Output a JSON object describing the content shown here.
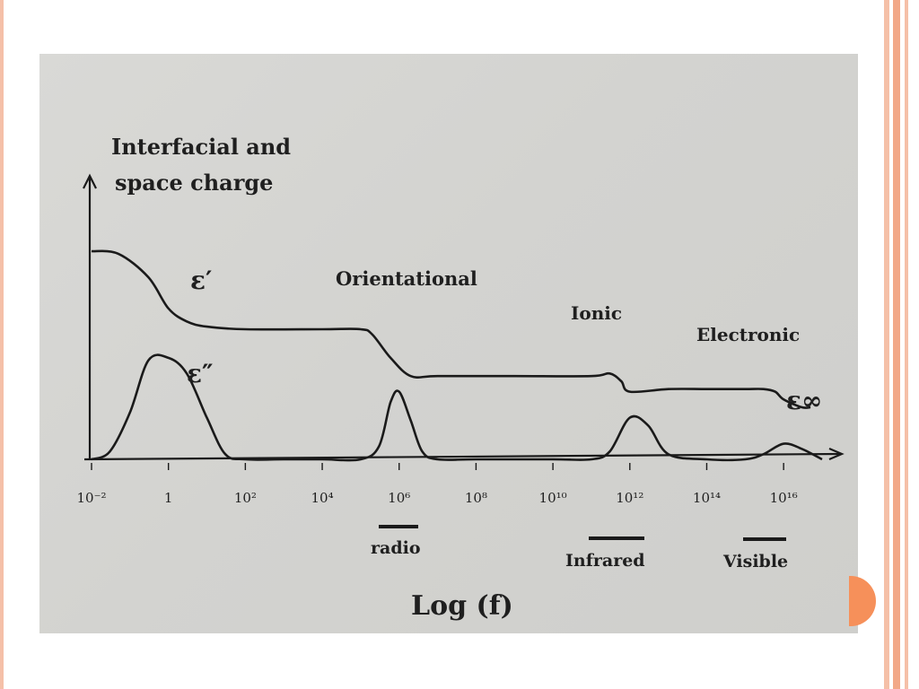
{
  "slide": {
    "accent_colors": [
      "#f5c0a8",
      "#f2a888",
      "#f6905a"
    ]
  },
  "chart_data": {
    "type": "line",
    "xlabel": "Log (f)",
    "ylabel": "",
    "x_scale": "log",
    "xlim": [
      0.01,
      1e+17
    ],
    "ylim": [
      0,
      10
    ],
    "x_ticks": [
      {
        "value": 0.01,
        "label": "10⁻²"
      },
      {
        "value": 1,
        "label": "1"
      },
      {
        "value": 100,
        "label": "10²"
      },
      {
        "value": 10000,
        "label": "10⁴"
      },
      {
        "value": 1000000.0,
        "label": "10⁶"
      },
      {
        "value": 100000000.0,
        "label": "10⁸"
      },
      {
        "value": 10000000000.0,
        "label": "10¹⁰"
      },
      {
        "value": 1000000000000.0,
        "label": "10¹²"
      },
      {
        "value": 100000000000000.0,
        "label": "10¹⁴"
      },
      {
        "value": 1e+16,
        "label": "10¹⁶"
      }
    ],
    "series": [
      {
        "name": "ε′",
        "x": [
          0.01,
          0.05,
          0.3,
          1,
          3,
          10,
          100,
          10000.0,
          100000.0,
          200000.0,
          600000.0,
          2000000.0,
          10000000.0,
          1000000000.0,
          100000000000.0,
          300000000000.0,
          600000000000.0,
          1000000000000.0,
          10000000000000.0,
          100000000000000.0,
          1000000000000000.0,
          3000000000000000.0,
          6000000000000000.0,
          1e+16,
          3e+16,
          5e+16
        ],
        "values": [
          8.0,
          7.9,
          7.0,
          5.8,
          5.3,
          5.1,
          5.0,
          5.0,
          5.0,
          4.8,
          3.9,
          3.2,
          3.2,
          3.2,
          3.2,
          3.3,
          3.0,
          2.6,
          2.7,
          2.7,
          2.7,
          2.7,
          2.6,
          2.3,
          2.0,
          2.0
        ]
      },
      {
        "name": "ε″",
        "x": [
          0.01,
          0.03,
          0.1,
          0.3,
          1,
          3,
          10,
          30,
          100,
          1000.0,
          10000.0,
          100000.0,
          300000.0,
          600000.0,
          1000000.0,
          2000000.0,
          4000000.0,
          10000000.0,
          100000000.0,
          10000000000.0,
          100000000000.0,
          300000000000.0,
          1000000000000.0,
          3000000000000.0,
          10000000000000.0,
          100000000000000.0,
          1000000000000000.0,
          3000000000000000.0,
          1e+16,
          3e+16,
          1e+17
        ],
        "values": [
          0,
          0.3,
          1.8,
          3.8,
          3.9,
          3.3,
          1.6,
          0.2,
          0,
          0,
          0,
          0,
          0.5,
          2.2,
          2.6,
          1.5,
          0.3,
          0,
          0,
          0,
          0,
          0.3,
          1.6,
          1.3,
          0.2,
          0,
          0,
          0.2,
          0.6,
          0.4,
          0
        ]
      }
    ],
    "annotations": [
      {
        "text": "Interfacial and",
        "role": "mechanism"
      },
      {
        "text": "space charge",
        "role": "mechanism"
      },
      {
        "text": "Orientational",
        "role": "mechanism"
      },
      {
        "text": "Ionic",
        "role": "mechanism"
      },
      {
        "text": "Electronic",
        "role": "mechanism"
      },
      {
        "text": "ε′",
        "role": "curve-label"
      },
      {
        "text": "ε″",
        "role": "curve-label"
      },
      {
        "text": "ε∞",
        "role": "curve-label"
      }
    ],
    "bands": [
      {
        "label": "radio",
        "value": 1000000.0
      },
      {
        "label": "Infrared",
        "value": 1000000000000.0
      },
      {
        "label": "Visible",
        "value": 1e+16
      }
    ],
    "grid": false,
    "legend": "none"
  }
}
